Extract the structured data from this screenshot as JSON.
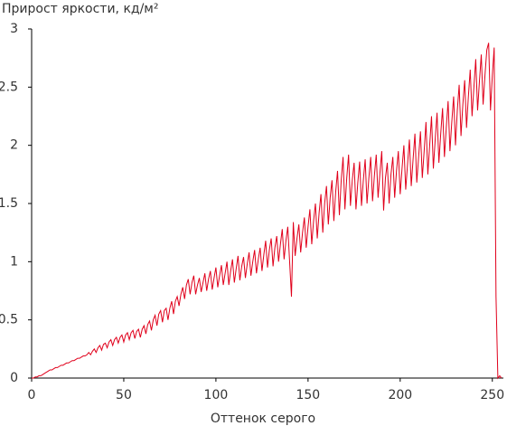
{
  "chart_data": {
    "type": "line",
    "title": "Прирост яркости, кд/м²",
    "xlabel": "Оттенок серого",
    "xlim": [
      0,
      256
    ],
    "ylim": [
      0,
      3
    ],
    "xticks": [
      0,
      50,
      100,
      150,
      200,
      250
    ],
    "yticks": [
      0,
      0.5,
      1,
      1.5,
      2,
      2.5,
      3
    ],
    "grid": false,
    "x": [
      0,
      1,
      2,
      3,
      4,
      5,
      6,
      7,
      8,
      9,
      10,
      11,
      12,
      13,
      14,
      15,
      16,
      17,
      18,
      19,
      20,
      21,
      22,
      23,
      24,
      25,
      26,
      27,
      28,
      29,
      30,
      31,
      32,
      33,
      34,
      35,
      36,
      37,
      38,
      39,
      40,
      41,
      42,
      43,
      44,
      45,
      46,
      47,
      48,
      49,
      50,
      51,
      52,
      53,
      54,
      55,
      56,
      57,
      58,
      59,
      60,
      61,
      62,
      63,
      64,
      65,
      66,
      67,
      68,
      69,
      70,
      71,
      72,
      73,
      74,
      75,
      76,
      77,
      78,
      79,
      80,
      81,
      82,
      83,
      84,
      85,
      86,
      87,
      88,
      89,
      90,
      91,
      92,
      93,
      94,
      95,
      96,
      97,
      98,
      99,
      100,
      101,
      102,
      103,
      104,
      105,
      106,
      107,
      108,
      109,
      110,
      111,
      112,
      113,
      114,
      115,
      116,
      117,
      118,
      119,
      120,
      121,
      122,
      123,
      124,
      125,
      126,
      127,
      128,
      129,
      130,
      131,
      132,
      133,
      134,
      135,
      136,
      137,
      138,
      139,
      140,
      141,
      142,
      143,
      144,
      145,
      146,
      147,
      148,
      149,
      150,
      151,
      152,
      153,
      154,
      155,
      156,
      157,
      158,
      159,
      160,
      161,
      162,
      163,
      164,
      165,
      166,
      167,
      168,
      169,
      170,
      171,
      172,
      173,
      174,
      175,
      176,
      177,
      178,
      179,
      180,
      181,
      182,
      183,
      184,
      185,
      186,
      187,
      188,
      189,
      190,
      191,
      192,
      193,
      194,
      195,
      196,
      197,
      198,
      199,
      200,
      201,
      202,
      203,
      204,
      205,
      206,
      207,
      208,
      209,
      210,
      211,
      212,
      213,
      214,
      215,
      216,
      217,
      218,
      219,
      220,
      221,
      222,
      223,
      224,
      225,
      226,
      227,
      228,
      229,
      230,
      231,
      232,
      233,
      234,
      235,
      236,
      237,
      238,
      239,
      240,
      241,
      242,
      243,
      244,
      245,
      246,
      247,
      248,
      249,
      250,
      251,
      252,
      253,
      254,
      255
    ],
    "series": [
      {
        "color": "#e0001b",
        "values": [
          0,
          0,
          0.01,
          0.01,
          0.02,
          0.02,
          0.03,
          0.04,
          0.05,
          0.06,
          0.07,
          0.07,
          0.08,
          0.09,
          0.09,
          0.1,
          0.11,
          0.11,
          0.12,
          0.13,
          0.13,
          0.14,
          0.15,
          0.15,
          0.16,
          0.17,
          0.17,
          0.18,
          0.19,
          0.19,
          0.2,
          0.22,
          0.2,
          0.23,
          0.25,
          0.22,
          0.26,
          0.28,
          0.24,
          0.29,
          0.3,
          0.26,
          0.31,
          0.33,
          0.28,
          0.33,
          0.35,
          0.3,
          0.35,
          0.37,
          0.31,
          0.37,
          0.39,
          0.33,
          0.39,
          0.41,
          0.34,
          0.4,
          0.42,
          0.35,
          0.42,
          0.45,
          0.38,
          0.46,
          0.49,
          0.41,
          0.5,
          0.54,
          0.45,
          0.55,
          0.58,
          0.48,
          0.58,
          0.6,
          0.5,
          0.6,
          0.66,
          0.55,
          0.66,
          0.7,
          0.62,
          0.72,
          0.78,
          0.68,
          0.8,
          0.85,
          0.72,
          0.82,
          0.88,
          0.72,
          0.8,
          0.86,
          0.74,
          0.82,
          0.9,
          0.75,
          0.85,
          0.92,
          0.76,
          0.86,
          0.95,
          0.78,
          0.88,
          0.97,
          0.8,
          0.9,
          1.0,
          0.8,
          0.92,
          1.02,
          0.82,
          0.94,
          1.05,
          0.84,
          0.96,
          1.04,
          0.86,
          0.98,
          1.08,
          0.88,
          1.0,
          1.1,
          0.9,
          1.02,
          1.12,
          0.92,
          1.06,
          1.18,
          0.95,
          1.1,
          1.2,
          0.96,
          1.12,
          1.22,
          1.0,
          1.15,
          1.28,
          1.02,
          1.18,
          1.3,
          1.0,
          0.7,
          1.34,
          1.05,
          1.2,
          1.32,
          1.08,
          1.25,
          1.38,
          1.12,
          1.3,
          1.45,
          1.15,
          1.35,
          1.5,
          1.2,
          1.42,
          1.58,
          1.25,
          1.5,
          1.65,
          1.32,
          1.55,
          1.7,
          1.35,
          1.6,
          1.78,
          1.4,
          1.7,
          1.9,
          1.45,
          1.72,
          1.92,
          1.48,
          1.7,
          1.85,
          1.45,
          1.68,
          1.86,
          1.48,
          1.7,
          1.88,
          1.5,
          1.72,
          1.9,
          1.52,
          1.74,
          1.92,
          1.55,
          1.76,
          1.95,
          1.44,
          1.72,
          1.85,
          1.5,
          1.75,
          1.9,
          1.55,
          1.78,
          1.95,
          1.58,
          1.8,
          2.0,
          1.62,
          1.84,
          2.05,
          1.65,
          1.88,
          2.1,
          1.68,
          1.9,
          2.12,
          1.72,
          1.95,
          2.2,
          1.75,
          2.0,
          2.25,
          1.8,
          2.05,
          2.28,
          1.85,
          2.1,
          2.32,
          1.9,
          2.15,
          2.38,
          1.95,
          2.2,
          2.42,
          2.0,
          2.3,
          2.52,
          2.08,
          2.35,
          2.56,
          2.15,
          2.42,
          2.65,
          2.25,
          2.5,
          2.74,
          2.3,
          2.55,
          2.78,
          2.35,
          2.6,
          2.82,
          2.88,
          2.3,
          2.6,
          2.84,
          0.7,
          0.0,
          0.02,
          0.0
        ]
      }
    ]
  }
}
